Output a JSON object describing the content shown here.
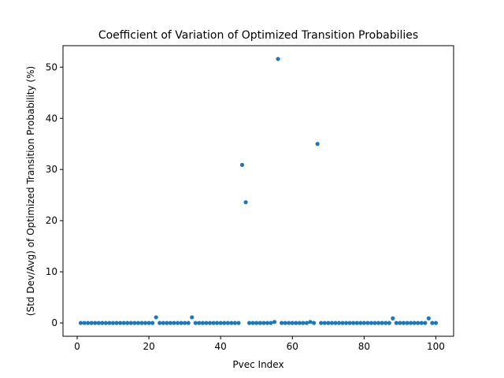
{
  "chart_data": {
    "type": "scatter",
    "title": "Coefficient of Variation of Optimized Transition Probabilies",
    "xlabel": "Pvec Index",
    "ylabel": "(Std Dev/Avg) of Optimized Transition Probability (%)",
    "xlim": [
      -3.95,
      104.95
    ],
    "ylim": [
      -2.6,
      54.2
    ],
    "xticks": [
      0,
      20,
      40,
      60,
      80,
      100
    ],
    "yticks": [
      0,
      10,
      20,
      30,
      40,
      50
    ],
    "grid": false,
    "marker_color": "#1f77b4",
    "series": [
      {
        "x": [
          1,
          2,
          3,
          4,
          5,
          6,
          7,
          8,
          9,
          10,
          11,
          12,
          13,
          14,
          15,
          16,
          17,
          18,
          19,
          20,
          21,
          22,
          23,
          24,
          25,
          26,
          27,
          28,
          29,
          30,
          31,
          32,
          33,
          34,
          35,
          36,
          37,
          38,
          39,
          40,
          41,
          42,
          43,
          44,
          45,
          46,
          47,
          48,
          49,
          50,
          51,
          52,
          53,
          54,
          55,
          56,
          57,
          58,
          59,
          60,
          61,
          62,
          63,
          64,
          65,
          66,
          67,
          68,
          69,
          70,
          71,
          72,
          73,
          74,
          75,
          76,
          77,
          78,
          79,
          80,
          81,
          82,
          83,
          84,
          85,
          86,
          87,
          88,
          89,
          90,
          91,
          92,
          93,
          94,
          95,
          96,
          97,
          98,
          99,
          100
        ],
        "y": [
          0,
          0,
          0,
          0,
          0,
          0,
          0,
          0,
          0,
          0,
          0,
          0,
          0,
          0,
          0,
          0,
          0,
          0,
          0,
          0,
          0,
          1.1,
          0,
          0,
          0,
          0,
          0,
          0,
          0,
          0,
          0,
          1.1,
          0,
          0,
          0,
          0,
          0,
          0,
          0,
          0,
          0,
          0,
          0,
          0,
          0,
          30.9,
          23.6,
          0,
          0,
          0,
          0,
          0,
          0,
          0,
          0.2,
          51.6,
          0,
          0,
          0,
          0,
          0,
          0,
          0,
          0,
          0.2,
          0,
          35.0,
          0,
          0,
          0,
          0,
          0,
          0,
          0,
          0,
          0,
          0,
          0,
          0,
          0,
          0,
          0,
          0,
          0,
          0,
          0,
          0,
          0.9,
          0,
          0,
          0,
          0,
          0,
          0,
          0,
          0,
          0,
          0.9,
          0,
          0
        ]
      }
    ]
  }
}
